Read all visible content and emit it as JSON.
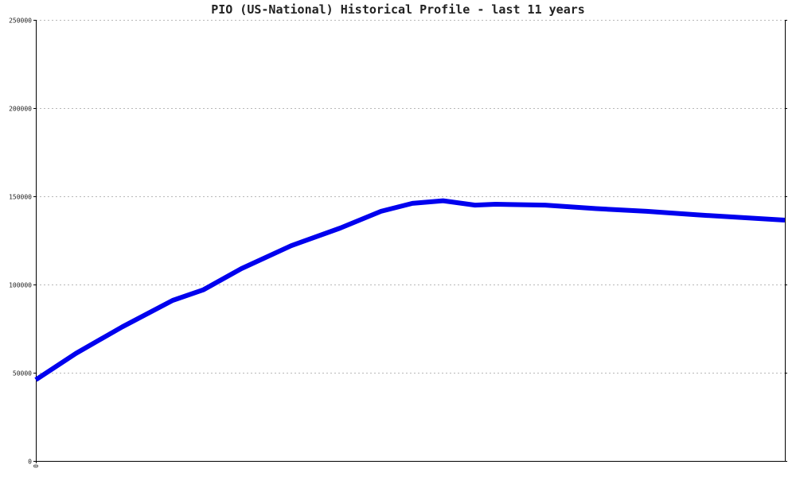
{
  "colors": {
    "series": "#0000ee",
    "axis": "#000000",
    "grid": "#b8b8b8",
    "text": "#222222",
    "background": "#ffffff"
  },
  "chart_data": {
    "type": "line",
    "title": "PIO (US-National) Historical Profile - last 11 years",
    "xlabel": "",
    "ylabel": "",
    "ylim": [
      0,
      250000
    ],
    "xlim": [
      0,
      11
    ],
    "grid": true,
    "legend": "none",
    "x_tick_labels": [
      {
        "x": 0,
        "label": "0"
      }
    ],
    "y_ticks": [
      0,
      50000,
      100000,
      150000,
      200000,
      250000
    ],
    "y_tick_labels": [
      "0",
      "50000",
      "100000",
      "150000",
      "200000",
      "250000"
    ],
    "series": [
      {
        "color": "#0000ee",
        "x": [
          0,
          0.59,
          1.27,
          2.01,
          2.46,
          3.02,
          3.75,
          4.47,
          5.07,
          5.53,
          5.98,
          6.45,
          6.75,
          7.48,
          8.23,
          8.97,
          9.7,
          11.0
        ],
        "values": [
          46000,
          61000,
          76000,
          91000,
          97000,
          109000,
          122000,
          132000,
          141500,
          146000,
          147500,
          145000,
          145500,
          145000,
          143000,
          141500,
          139500,
          136500
        ]
      }
    ]
  }
}
